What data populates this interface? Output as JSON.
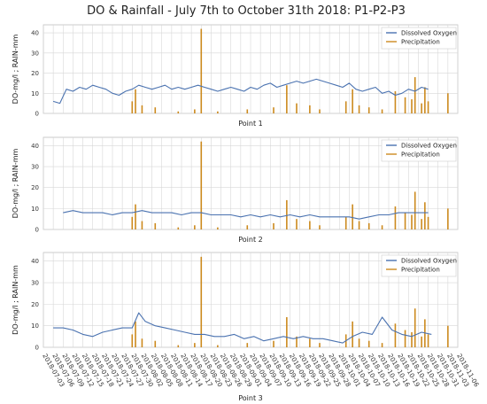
{
  "figure": {
    "title": "DO & Rainfall - July 7th to October 31th 2018: P1-P2-P3"
  },
  "colors": {
    "do": "#4a72b0",
    "rain": "#cc8a1e",
    "grid": "#d7d7d7",
    "frame": "#bfbfbf"
  },
  "chart_data": [
    {
      "type": "line",
      "title": "",
      "xlabel": "Point 1",
      "ylabel": "DO-mg/l ; RAIN-mm",
      "ylim": [
        0,
        44
      ],
      "yticks": [
        0,
        10,
        20,
        30,
        40
      ],
      "grid": true,
      "legend": "top-right",
      "x_dates": [
        "2018-07-03",
        "2018-07-06",
        "2018-07-09",
        "2018-07-12",
        "2018-07-15",
        "2018-07-18",
        "2018-07-21",
        "2018-07-24",
        "2018-07-27",
        "2018-07-30",
        "2018-08-02",
        "2018-08-05",
        "2018-08-08",
        "2018-08-11",
        "2018-08-14",
        "2018-08-17",
        "2018-08-20",
        "2018-08-23",
        "2018-08-26",
        "2018-08-29",
        "2018-09-01",
        "2018-09-04",
        "2018-09-07",
        "2018-09-10",
        "2018-09-13",
        "2018-09-16",
        "2018-09-19",
        "2018-09-22",
        "2018-09-25",
        "2018-09-28",
        "2018-10-01",
        "2018-10-04",
        "2018-10-07",
        "2018-10-10",
        "2018-10-13",
        "2018-10-16",
        "2018-10-19",
        "2018-10-22",
        "2018-10-25",
        "2018-10-28",
        "2018-10-31",
        "2018-11-03",
        "2018-11-06"
      ],
      "series": [
        {
          "name": "Dissolved Oxygen",
          "x": [
            "2018-07-06",
            "2018-07-08",
            "2018-07-10",
            "2018-07-12",
            "2018-07-14",
            "2018-07-16",
            "2018-07-18",
            "2018-07-20",
            "2018-07-22",
            "2018-07-24",
            "2018-07-26",
            "2018-07-28",
            "2018-07-30",
            "2018-08-01",
            "2018-08-03",
            "2018-08-05",
            "2018-08-07",
            "2018-08-09",
            "2018-08-11",
            "2018-08-13",
            "2018-08-15",
            "2018-08-17",
            "2018-08-19",
            "2018-08-21",
            "2018-08-23",
            "2018-08-25",
            "2018-08-27",
            "2018-08-29",
            "2018-08-31",
            "2018-09-02",
            "2018-09-04",
            "2018-09-06",
            "2018-09-08",
            "2018-09-10",
            "2018-09-12",
            "2018-09-14",
            "2018-09-16",
            "2018-09-18",
            "2018-09-20",
            "2018-09-22",
            "2018-09-24",
            "2018-09-26",
            "2018-09-28",
            "2018-09-30",
            "2018-10-02",
            "2018-10-04",
            "2018-10-06",
            "2018-10-08",
            "2018-10-10",
            "2018-10-12",
            "2018-10-14",
            "2018-10-16",
            "2018-10-18",
            "2018-10-20",
            "2018-10-22",
            "2018-10-24",
            "2018-10-26",
            "2018-10-28"
          ],
          "y": [
            6,
            5,
            12,
            11,
            13,
            12,
            14,
            13,
            12,
            10,
            9,
            11,
            12,
            14,
            13,
            12,
            13,
            14,
            12,
            13,
            12,
            13,
            14,
            13,
            12,
            11,
            12,
            13,
            12,
            11,
            13,
            12,
            14,
            15,
            13,
            14,
            15,
            16,
            15,
            16,
            17,
            16,
            15,
            14,
            13,
            15,
            12,
            11,
            12,
            13,
            10,
            11,
            9,
            10,
            12,
            11,
            13,
            12
          ]
        },
        {
          "name": "Precipitation",
          "x": [
            "2018-07-30",
            "2018-07-31",
            "2018-08-02",
            "2018-08-06",
            "2018-08-13",
            "2018-08-18",
            "2018-08-20",
            "2018-08-25",
            "2018-09-03",
            "2018-09-11",
            "2018-09-15",
            "2018-09-18",
            "2018-09-22",
            "2018-09-25",
            "2018-10-03",
            "2018-10-05",
            "2018-10-07",
            "2018-10-10",
            "2018-10-14",
            "2018-10-18",
            "2018-10-21",
            "2018-10-23",
            "2018-10-24",
            "2018-10-26",
            "2018-10-27",
            "2018-10-28",
            "2018-11-03"
          ],
          "y": [
            6,
            12,
            4,
            3,
            1,
            2,
            42,
            1,
            2,
            3,
            14,
            5,
            4,
            2,
            6,
            12,
            4,
            3,
            2,
            11,
            8,
            7,
            18,
            5,
            13,
            6,
            10
          ]
        }
      ]
    },
    {
      "type": "line",
      "title": "",
      "xlabel": "Point 2",
      "ylabel": "DO-mg/l ; RAIN-mm",
      "ylim": [
        0,
        44
      ],
      "yticks": [
        0,
        10,
        20,
        30,
        40
      ],
      "grid": true,
      "legend": "top-right",
      "series": [
        {
          "name": "Dissolved Oxygen",
          "x": [
            "2018-07-09",
            "2018-07-12",
            "2018-07-15",
            "2018-07-18",
            "2018-07-21",
            "2018-07-24",
            "2018-07-27",
            "2018-07-30",
            "2018-08-02",
            "2018-08-05",
            "2018-08-08",
            "2018-08-11",
            "2018-08-14",
            "2018-08-17",
            "2018-08-20",
            "2018-08-23",
            "2018-08-26",
            "2018-08-29",
            "2018-09-01",
            "2018-09-04",
            "2018-09-07",
            "2018-09-10",
            "2018-09-13",
            "2018-09-16",
            "2018-09-19",
            "2018-09-22",
            "2018-09-25",
            "2018-09-28",
            "2018-10-01",
            "2018-10-04",
            "2018-10-07",
            "2018-10-10",
            "2018-10-13",
            "2018-10-16",
            "2018-10-19",
            "2018-10-22",
            "2018-10-25",
            "2018-10-28"
          ],
          "y": [
            8,
            9,
            8,
            8,
            8,
            7,
            8,
            8,
            9,
            8,
            8,
            8,
            7,
            8,
            8,
            7,
            7,
            7,
            6,
            7,
            6,
            7,
            6,
            7,
            6,
            7,
            6,
            6,
            6,
            6,
            5,
            6,
            7,
            7,
            8,
            8,
            8,
            8
          ]
        },
        {
          "name": "Precipitation",
          "x": [
            "2018-07-30",
            "2018-07-31",
            "2018-08-02",
            "2018-08-06",
            "2018-08-13",
            "2018-08-18",
            "2018-08-20",
            "2018-08-25",
            "2018-09-03",
            "2018-09-11",
            "2018-09-15",
            "2018-09-18",
            "2018-09-22",
            "2018-09-25",
            "2018-10-03",
            "2018-10-05",
            "2018-10-07",
            "2018-10-10",
            "2018-10-14",
            "2018-10-18",
            "2018-10-21",
            "2018-10-23",
            "2018-10-24",
            "2018-10-26",
            "2018-10-27",
            "2018-10-28",
            "2018-11-03"
          ],
          "y": [
            6,
            12,
            4,
            3,
            1,
            2,
            42,
            1,
            2,
            3,
            14,
            5,
            4,
            2,
            6,
            12,
            4,
            3,
            2,
            11,
            8,
            7,
            18,
            5,
            13,
            6,
            10
          ]
        }
      ]
    },
    {
      "type": "line",
      "title": "",
      "xlabel": "Point 3",
      "ylabel": "DO-mg/l ; RAIN-mm",
      "ylim": [
        0,
        44
      ],
      "yticks": [
        0,
        10,
        20,
        30,
        40
      ],
      "grid": true,
      "legend": "top-right",
      "series": [
        {
          "name": "Dissolved Oxygen",
          "x": [
            "2018-07-06",
            "2018-07-09",
            "2018-07-12",
            "2018-07-15",
            "2018-07-18",
            "2018-07-21",
            "2018-07-24",
            "2018-07-27",
            "2018-07-30",
            "2018-08-01",
            "2018-08-03",
            "2018-08-06",
            "2018-08-09",
            "2018-08-12",
            "2018-08-15",
            "2018-08-18",
            "2018-08-21",
            "2018-08-24",
            "2018-08-27",
            "2018-08-30",
            "2018-09-02",
            "2018-09-05",
            "2018-09-08",
            "2018-09-11",
            "2018-09-14",
            "2018-09-17",
            "2018-09-20",
            "2018-09-23",
            "2018-09-26",
            "2018-09-29",
            "2018-10-02",
            "2018-10-05",
            "2018-10-08",
            "2018-10-11",
            "2018-10-14",
            "2018-10-17",
            "2018-10-20",
            "2018-10-23",
            "2018-10-26",
            "2018-10-29"
          ],
          "y": [
            9,
            9,
            8,
            6,
            5,
            7,
            8,
            9,
            9,
            16,
            12,
            10,
            9,
            8,
            7,
            6,
            6,
            5,
            5,
            6,
            4,
            5,
            3,
            4,
            5,
            4,
            5,
            4,
            4,
            3,
            2,
            5,
            7,
            6,
            14,
            8,
            6,
            5,
            7,
            6
          ]
        },
        {
          "name": "Precipitation",
          "x": [
            "2018-07-30",
            "2018-07-31",
            "2018-08-02",
            "2018-08-06",
            "2018-08-13",
            "2018-08-18",
            "2018-08-20",
            "2018-08-25",
            "2018-09-03",
            "2018-09-11",
            "2018-09-15",
            "2018-09-18",
            "2018-09-22",
            "2018-09-25",
            "2018-10-03",
            "2018-10-05",
            "2018-10-07",
            "2018-10-10",
            "2018-10-14",
            "2018-10-18",
            "2018-10-21",
            "2018-10-23",
            "2018-10-24",
            "2018-10-26",
            "2018-10-27",
            "2018-10-28",
            "2018-11-03"
          ],
          "y": [
            6,
            12,
            4,
            3,
            1,
            2,
            42,
            1,
            2,
            3,
            14,
            5,
            4,
            2,
            6,
            12,
            4,
            3,
            2,
            11,
            8,
            7,
            18,
            5,
            13,
            6,
            10
          ]
        }
      ]
    }
  ]
}
